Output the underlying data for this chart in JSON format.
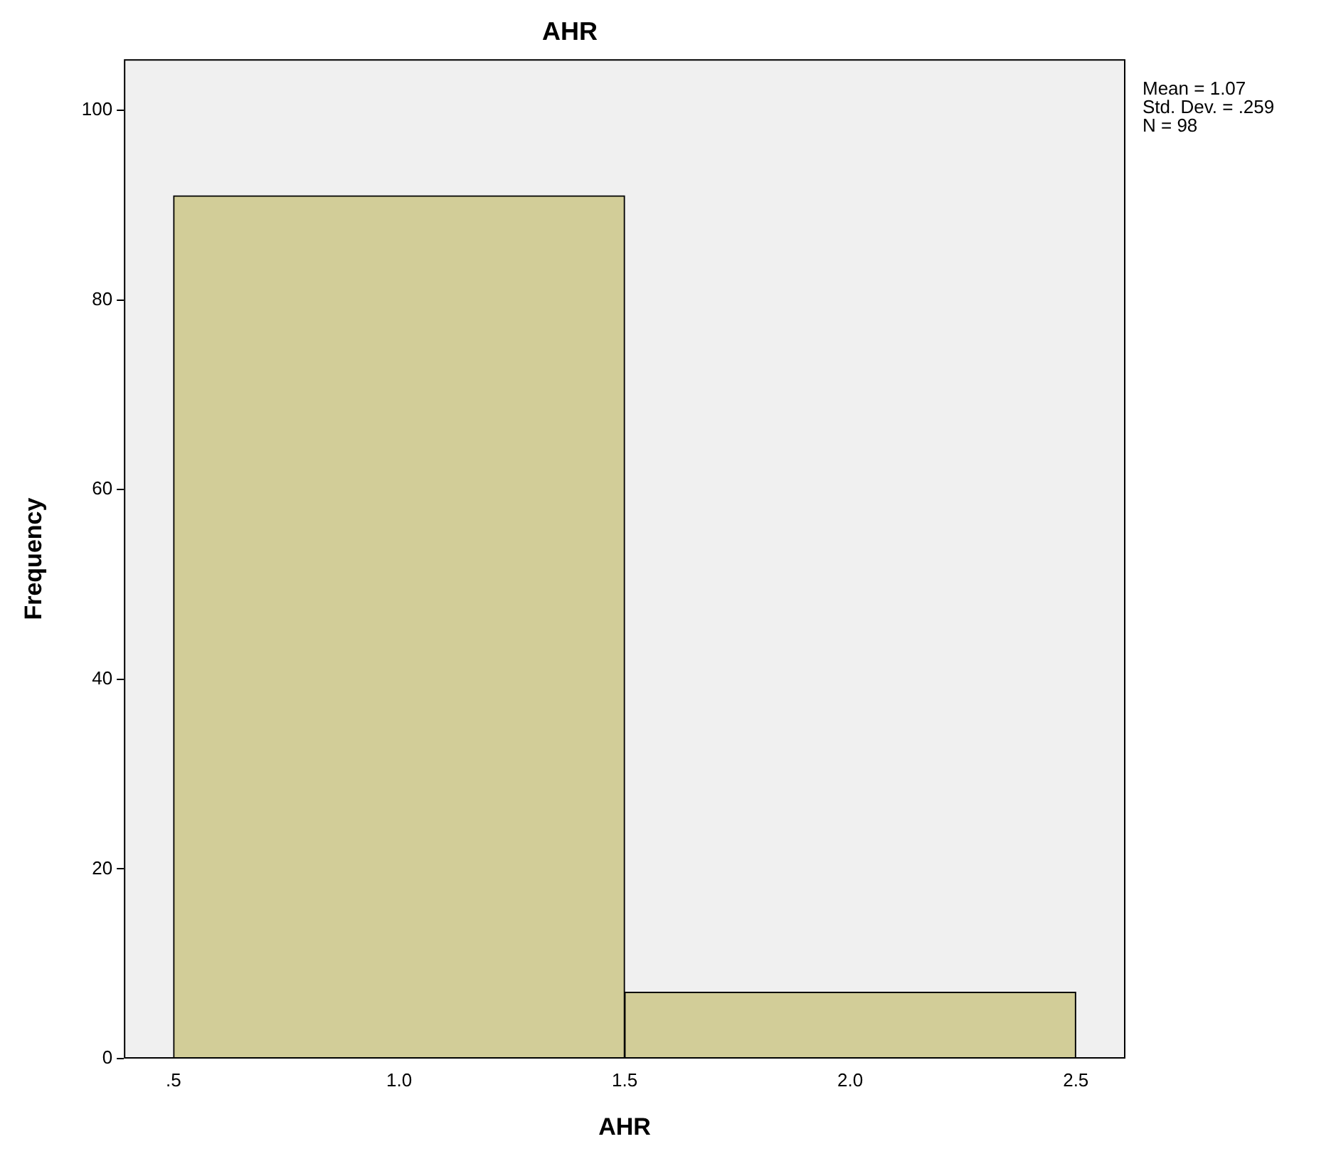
{
  "chart_data": {
    "type": "histogram",
    "title": "AHR",
    "xlabel": "AHR",
    "ylabel": "Frequency",
    "bins": [
      0.5,
      1.5,
      2.5
    ],
    "values": [
      91,
      7
    ],
    "color": "#d2cd98",
    "xlim": [
      0.39,
      2.61
    ],
    "ylim": [
      0,
      105.4
    ],
    "xticks": [
      {
        "value": 0.5,
        "label": ".5"
      },
      {
        "value": 1.0,
        "label": "1.0"
      },
      {
        "value": 1.5,
        "label": "1.5"
      },
      {
        "value": 2.0,
        "label": "2.0"
      },
      {
        "value": 2.5,
        "label": "2.5"
      }
    ],
    "yticks": [
      0,
      20,
      40,
      60,
      80,
      100
    ],
    "annotations": [
      "Mean = 1.07",
      "Std. Dev. = .259",
      "N = 98"
    ]
  }
}
